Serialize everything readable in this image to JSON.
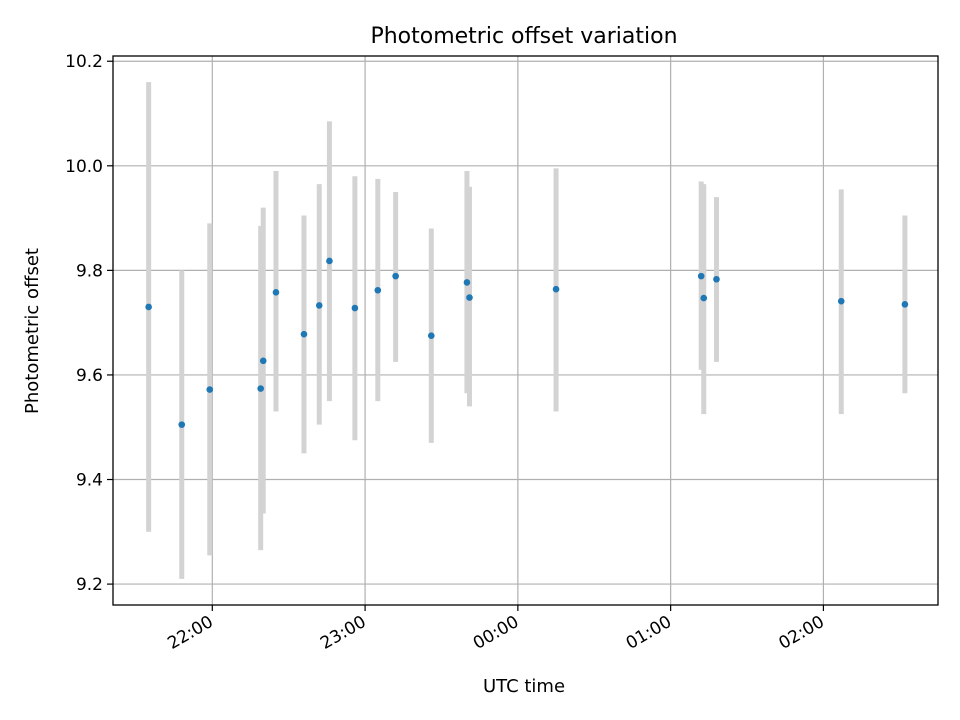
{
  "chart_data": {
    "type": "scatter",
    "title": "Photometric offset variation",
    "xlabel": "UTC time",
    "ylabel": "Photometric offset",
    "x_is_time": true,
    "xlim": [
      "21:21",
      "02:45"
    ],
    "ylim": [
      9.16,
      10.21
    ],
    "x_ticks": [
      "22:00",
      "23:00",
      "00:00",
      "01:00",
      "02:00"
    ],
    "y_ticks": [
      9.2,
      9.4,
      9.6,
      9.8,
      10.0,
      10.2
    ],
    "y_tick_labels": [
      "9.2",
      "9.4",
      "9.6",
      "9.8",
      "10.0",
      "10.2"
    ],
    "grid": true,
    "marker_color": "#1f77b4",
    "errorbar_color": "#d3d3d3",
    "points": [
      {
        "t": "21:35",
        "y": 9.73,
        "lo": 9.3,
        "hi": 10.16
      },
      {
        "t": "21:48",
        "y": 9.505,
        "lo": 9.21,
        "hi": 9.8
      },
      {
        "t": "21:59",
        "y": 9.572,
        "lo": 9.255,
        "hi": 9.89
      },
      {
        "t": "22:19",
        "y": 9.574,
        "lo": 9.265,
        "hi": 9.885
      },
      {
        "t": "22:20",
        "y": 9.627,
        "lo": 9.335,
        "hi": 9.92
      },
      {
        "t": "22:25",
        "y": 9.758,
        "lo": 9.53,
        "hi": 9.99
      },
      {
        "t": "22:36",
        "y": 9.678,
        "lo": 9.45,
        "hi": 9.905
      },
      {
        "t": "22:42",
        "y": 9.733,
        "lo": 9.505,
        "hi": 9.965
      },
      {
        "t": "22:46",
        "y": 9.818,
        "lo": 9.55,
        "hi": 10.085
      },
      {
        "t": "22:56",
        "y": 9.728,
        "lo": 9.475,
        "hi": 9.98
      },
      {
        "t": "23:05",
        "y": 9.762,
        "lo": 9.55,
        "hi": 9.975
      },
      {
        "t": "23:12",
        "y": 9.789,
        "lo": 9.625,
        "hi": 9.95
      },
      {
        "t": "23:26",
        "y": 9.675,
        "lo": 9.47,
        "hi": 9.88
      },
      {
        "t": "23:40",
        "y": 9.777,
        "lo": 9.565,
        "hi": 9.99
      },
      {
        "t": "23:41",
        "y": 9.748,
        "lo": 9.54,
        "hi": 9.96
      },
      {
        "t": "00:15",
        "y": 9.764,
        "lo": 9.53,
        "hi": 9.995
      },
      {
        "t": "01:12",
        "y": 9.789,
        "lo": 9.61,
        "hi": 9.97
      },
      {
        "t": "01:13",
        "y": 9.747,
        "lo": 9.525,
        "hi": 9.965
      },
      {
        "t": "01:18",
        "y": 9.783,
        "lo": 9.625,
        "hi": 9.94
      },
      {
        "t": "02:07",
        "y": 9.741,
        "lo": 9.525,
        "hi": 9.955
      },
      {
        "t": "02:32",
        "y": 9.735,
        "lo": 9.565,
        "hi": 9.905
      }
    ]
  }
}
